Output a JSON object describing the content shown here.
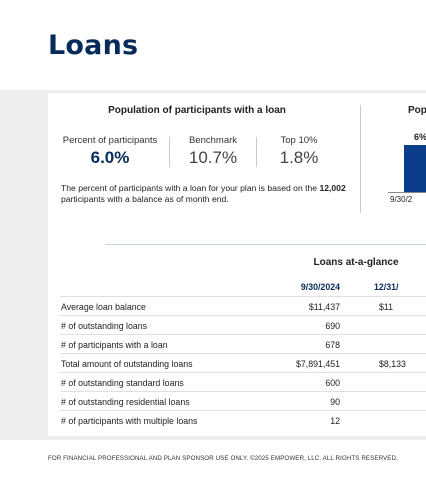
{
  "page": {
    "title": "Loans"
  },
  "participants_panel": {
    "title": "Population of participants with a loan",
    "stats": [
      {
        "label": "Percent of participants",
        "value": "6.0%"
      },
      {
        "label": "Benchmark",
        "value": "10.7%"
      },
      {
        "label": "Top 10%",
        "value": "1.8%"
      }
    ],
    "note_before": "The percent of participants with a loan for your plan is based on the ",
    "note_bold": "12,002",
    "note_after": " participants with a balance as of month end."
  },
  "trend_panel": {
    "title": "Pop",
    "bar_value_label": "6%",
    "x_label": "9/30/2",
    "bar_color": "#0a3d8a"
  },
  "glance_table": {
    "title": "Loans at-a-glance",
    "columns": [
      "9/30/2024",
      "12/31/"
    ],
    "rows": [
      {
        "label": "Average loan balance",
        "v1": "$11,437",
        "v2": "$11"
      },
      {
        "label": "# of outstanding loans",
        "v1": "690",
        "v2": ""
      },
      {
        "label": "# of participants with a loan",
        "v1": "678",
        "v2": ""
      },
      {
        "label": "Total amount of outstanding loans",
        "v1": "$7,891,451",
        "v2": "$8,133"
      },
      {
        "label": "# of outstanding standard loans",
        "v1": "600",
        "v2": ""
      },
      {
        "label": "# of outstanding residential loans",
        "v1": "90",
        "v2": ""
      },
      {
        "label": "# of participants with multiple loans",
        "v1": "12",
        "v2": ""
      }
    ]
  },
  "footer": {
    "text": "FOR FINANCIAL PROFESSIONAL AND PLAN SPONSOR USE ONLY. ©2025 EMPOWER, LLC. ALL RIGHTS RESERVED."
  },
  "colors": {
    "brand_navy": "#062b5b",
    "band_gray": "#eeeeee"
  }
}
